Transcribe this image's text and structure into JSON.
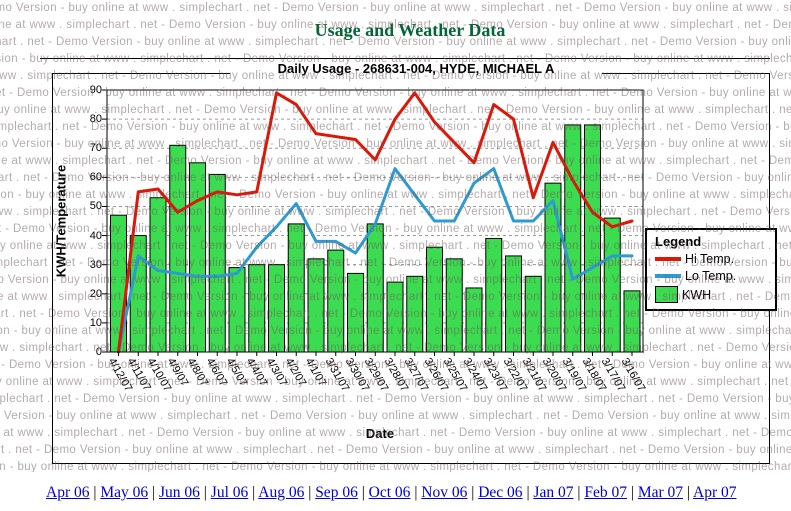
{
  "page": {
    "title": "Usage and Weather Data",
    "title_color": "#006633"
  },
  "chart": {
    "subtitle": "Daily Usage - 268631-004, HYDE, MICHAEL A",
    "x_axis_label": "Date",
    "y_axis_label": "KWH/Temperature",
    "watermark_text": "Demo Version - buy online at www . simplechart . net - ",
    "legend": {
      "title": "Legend",
      "items": [
        {
          "label": "Hi Temp.",
          "swatch": "line",
          "color": "#e01505"
        },
        {
          "label": "Lo Temp.",
          "swatch": "line",
          "color": "#2f9ad2"
        },
        {
          "label": "KWH",
          "swatch": "box",
          "color": "#3cdc50"
        }
      ]
    }
  },
  "chart_data": {
    "type": "bar",
    "title": "Daily Usage - 268631-004, HYDE, MICHAEL A",
    "xlabel": "Date",
    "ylabel": "KWH/Temperature",
    "ylim": [
      0,
      90
    ],
    "y_ticks": [
      0,
      10,
      20,
      30,
      40,
      50,
      60,
      70,
      80,
      90
    ],
    "grid": true,
    "legend_position": "right",
    "categories": [
      "4/12/07",
      "4/11/07",
      "4/10/07",
      "4/9/07",
      "4/8/07",
      "4/6/07",
      "4/5/07",
      "4/4/07",
      "4/3/07",
      "4/2/07",
      "4/1/07",
      "3/31/07",
      "3/30/07",
      "3/29/07",
      "3/28/07",
      "3/27/07",
      "3/26/07",
      "3/25/07",
      "3/24/07",
      "3/23/07",
      "3/22/07",
      "3/21/07",
      "3/20/07",
      "3/19/07",
      "3/18/07",
      "3/17/07",
      "3/16/07"
    ],
    "series": [
      {
        "name": "KWH",
        "type": "bar",
        "color": "#3cdc50",
        "values": [
          47,
          40,
          53,
          71,
          65,
          61,
          29,
          30,
          30,
          44,
          32,
          35,
          27,
          44,
          24,
          26,
          36,
          32,
          22,
          39,
          33,
          26,
          58,
          78,
          78,
          46,
          21
        ]
      },
      {
        "name": "Hi Temp.",
        "type": "line",
        "color": "#e01505",
        "values": [
          0,
          55,
          56,
          48,
          52,
          55,
          54,
          55,
          89,
          85,
          75,
          74,
          73,
          66,
          80,
          89,
          79,
          72,
          65,
          85,
          80,
          53,
          72,
          59,
          48,
          43,
          45
        ]
      },
      {
        "name": "Lo Temp.",
        "type": "line",
        "color": "#2f9ad2",
        "values": [
          0,
          33,
          28,
          27,
          26,
          26,
          27,
          36,
          43,
          51,
          38,
          38,
          34,
          44,
          63,
          54,
          45,
          45,
          58,
          63,
          45,
          45,
          52,
          25,
          29,
          33,
          33
        ]
      }
    ]
  },
  "footer": {
    "separator": "|",
    "months": [
      "Apr 06",
      "May 06",
      "Jun 06",
      "Jul 06",
      "Aug 06",
      "Sep 06",
      "Oct 06",
      "Nov 06",
      "Dec 06",
      "Jan 07",
      "Feb 07",
      "Mar 07",
      "Apr 07"
    ]
  }
}
